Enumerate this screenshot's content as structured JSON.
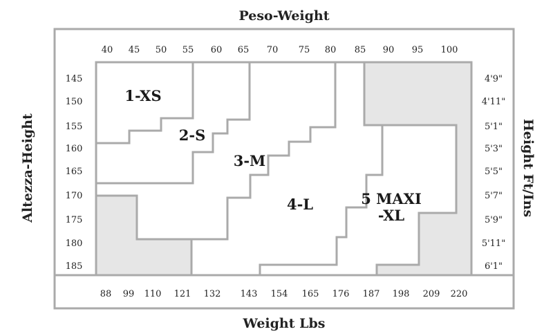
{
  "chart_data": {
    "type": "size_chart",
    "title_top": "Peso-Weight",
    "title_bottom": "Weight Lbs",
    "title_left": "Altezza-Height",
    "title_right": "Height Ft/Ins",
    "top_ticks_kg": [
      "40",
      "45",
      "50",
      "55",
      "60",
      "65",
      "70",
      "75",
      "80",
      "85",
      "90",
      "95",
      "100"
    ],
    "bottom_ticks_lbs": [
      "88",
      "99",
      "110",
      "121",
      "132",
      "143",
      "154",
      "165",
      "176",
      "187",
      "198",
      "209",
      "220"
    ],
    "left_ticks_cm": [
      "145",
      "150",
      "155",
      "160",
      "165",
      "170",
      "175",
      "180",
      "185"
    ],
    "right_ticks_ftin": [
      "4'9\"",
      "4'11\"",
      "5'1\"",
      "5'3\"",
      "5'5\"",
      "5'7\"",
      "5'9\"",
      "5'11\"",
      "6'1\""
    ],
    "sizes": [
      {
        "label": "1-XS"
      },
      {
        "label": "2-S"
      },
      {
        "label": "3-M"
      },
      {
        "label": "4-L"
      },
      {
        "label_line1": "5 MAXI",
        "label_line2": "-XL"
      }
    ],
    "colors": {
      "border": "#aaaaaa",
      "grey_region": "#e6e6e6",
      "text": "#222222"
    }
  }
}
